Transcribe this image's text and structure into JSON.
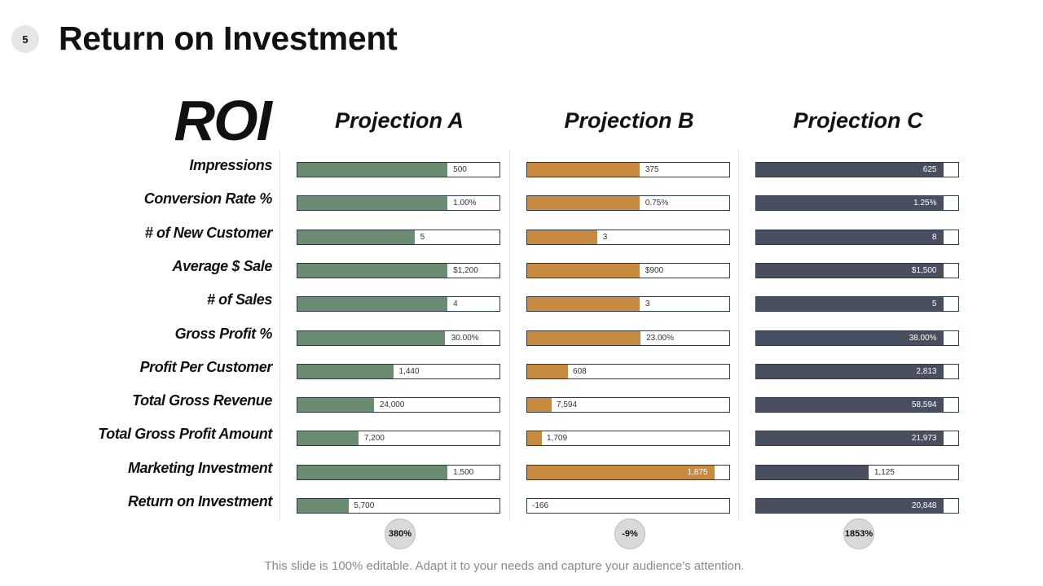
{
  "slide": {
    "number": "5",
    "title": "Return on Investment",
    "roi_heading": "ROI",
    "footer": "This slide is 100% editable. Adapt it to your needs and capture your audience's attention."
  },
  "colors": {
    "projection_a": "#6b8c71",
    "projection_b": "#c88a3e",
    "projection_c": "#4a4f60"
  },
  "chart_data": {
    "type": "bar",
    "orientation": "horizontal",
    "categories": [
      "Impressions",
      "Conversion Rate %",
      "# of New Customer",
      "Average $ Sale",
      "# of Sales",
      "Gross Profit %",
      "Profit Per Customer",
      "Total Gross Revenue",
      "Total Gross Profit Amount",
      "Marketing Investment",
      "Return on Investment"
    ],
    "series": [
      {
        "name": "Projection A",
        "values": [
          500,
          1.0,
          5,
          1200,
          4,
          30.0,
          1440,
          24000,
          7200,
          1500,
          5700
        ],
        "labels": [
          "500",
          "1.00%",
          "5",
          "$1,200",
          "4",
          "30.00%",
          "1,440",
          "24,000",
          "7,200",
          "1,500",
          "5,700"
        ],
        "roi": "380%"
      },
      {
        "name": "Projection B",
        "values": [
          375,
          0.75,
          3,
          900,
          3,
          23.0,
          608,
          7594,
          1709,
          1875,
          -166
        ],
        "labels": [
          "375",
          "0.75%",
          "3",
          "$900",
          "3",
          "23.00%",
          "608",
          "7,594",
          "1,709",
          "1,875",
          "-166"
        ],
        "roi": "-9%"
      },
      {
        "name": "Projection C",
        "values": [
          625,
          1.25,
          8,
          1500,
          5,
          38.0,
          2813,
          58594,
          21973,
          1125,
          20848
        ],
        "labels": [
          "625",
          "1.25%",
          "8",
          "$1,500",
          "5",
          "38.00%",
          "2,813",
          "58,594",
          "21,973",
          "1,125",
          "20,848"
        ],
        "roi": "1853%"
      }
    ],
    "title": "ROI",
    "xlabel": "",
    "ylabel": ""
  }
}
